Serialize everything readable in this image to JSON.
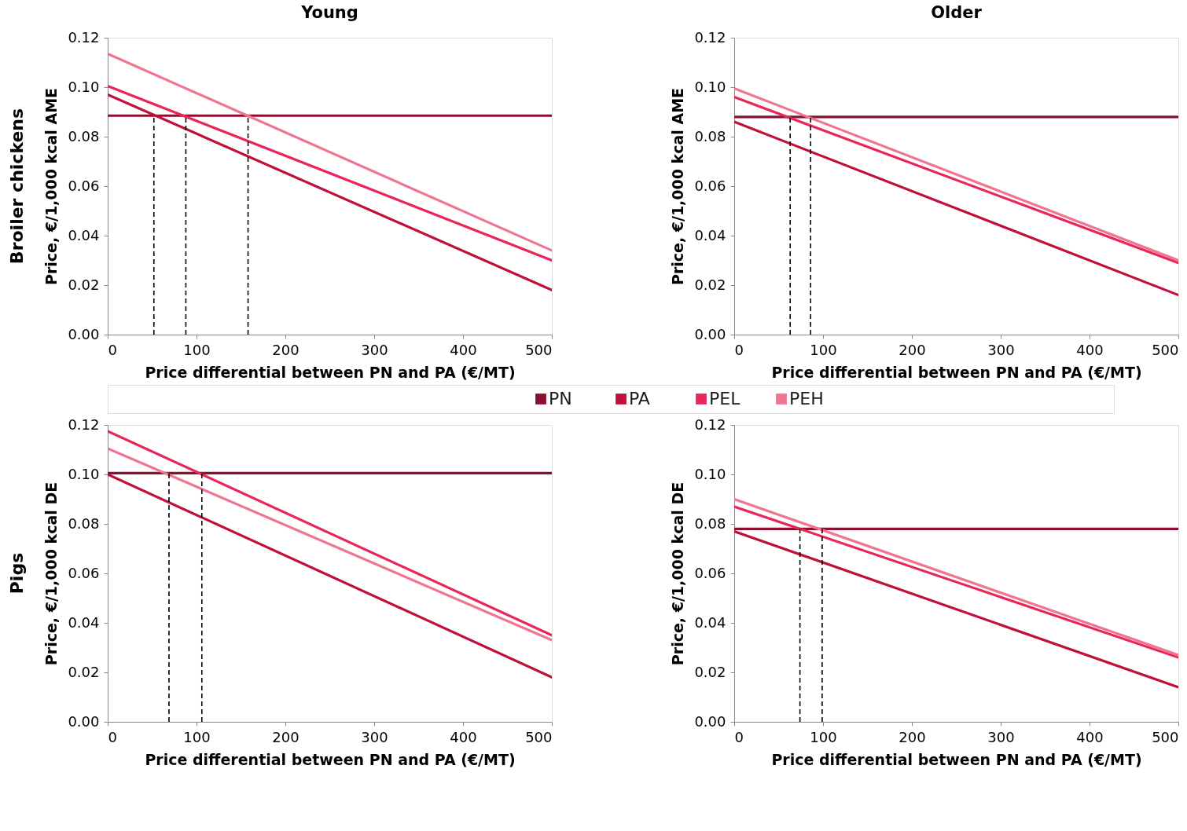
{
  "chart_data": [
    {
      "type": "line",
      "title": "Young",
      "xlabel": "Price differential between PN and PA (€/MT)",
      "ylabel": "Price, €/1,000 kcal AME",
      "annotations": [
        "Broiler chickens"
      ],
      "xlim": [
        0,
        500
      ],
      "xticks": [
        0,
        100,
        200,
        300,
        400,
        500
      ],
      "ylim": [
        0,
        0.12
      ],
      "yticks": [
        {
          "value": 0,
          "label": "0.00"
        },
        {
          "value": 0.02,
          "label": "0.02"
        },
        {
          "value": 0.04,
          "label": "0.04"
        },
        {
          "value": 0.06,
          "label": "0.06"
        },
        {
          "value": 0.08,
          "label": "0.08"
        },
        {
          "value": 0.1,
          "label": "0.10"
        },
        {
          "value": 0.12,
          "label": "0.12"
        }
      ],
      "grid": false,
      "legend": "bottom",
      "marker": "none",
      "series": [
        {
          "name": "PN",
          "color": "#8b1030",
          "x": [
            0,
            500
          ],
          "values": [
            0.0885,
            0.0885
          ]
        },
        {
          "name": "PA",
          "color": "#c0103a",
          "x": [
            0,
            500
          ],
          "values": [
            0.097,
            0.018
          ]
        },
        {
          "name": "PEL",
          "color": "#e8265a",
          "x": [
            0,
            500
          ],
          "values": [
            0.1005,
            0.03
          ]
        },
        {
          "name": "PEH",
          "color": "#ef7590",
          "x": [
            0,
            500
          ],
          "values": [
            0.1135,
            0.034
          ]
        },
        {
          "color": "#000000",
          "line_style": "dashed",
          "x": [
            52,
            52
          ],
          "values": [
            0,
            0.0885
          ]
        },
        {
          "color": "#000000",
          "line_style": "dashed",
          "x": [
            88,
            88
          ],
          "values": [
            0,
            0.0885
          ]
        },
        {
          "color": "#000000",
          "line_style": "dashed",
          "x": [
            158,
            158
          ],
          "values": [
            0,
            0.0885
          ]
        }
      ]
    },
    {
      "type": "line",
      "title": "Older",
      "xlabel": "Price differential between PN and PA (€/MT)",
      "ylabel": "Price, €/1,000 kcal AME",
      "xlim": [
        0,
        500
      ],
      "xticks": [
        0,
        100,
        200,
        300,
        400,
        500
      ],
      "ylim": [
        0,
        0.12
      ],
      "yticks": [
        {
          "value": 0,
          "label": "0.00"
        },
        {
          "value": 0.02,
          "label": "0.02"
        },
        {
          "value": 0.04,
          "label": "0.04"
        },
        {
          "value": 0.06,
          "label": "0.06"
        },
        {
          "value": 0.08,
          "label": "0.08"
        },
        {
          "value": 0.1,
          "label": "0.10"
        },
        {
          "value": 0.12,
          "label": "0.12"
        }
      ],
      "grid": false,
      "marker": "none",
      "series": [
        {
          "name": "PN",
          "color": "#8b1030",
          "x": [
            0,
            500
          ],
          "values": [
            0.088,
            0.088
          ]
        },
        {
          "name": "PA",
          "color": "#c0103a",
          "x": [
            0,
            500
          ],
          "values": [
            0.086,
            0.016
          ]
        },
        {
          "name": "PEL",
          "color": "#e8265a",
          "x": [
            0,
            500
          ],
          "values": [
            0.096,
            0.029
          ]
        },
        {
          "name": "PEH",
          "color": "#ef7590",
          "x": [
            0,
            500
          ],
          "values": [
            0.0995,
            0.03
          ]
        },
        {
          "color": "#000000",
          "line_style": "dashed",
          "x": [
            63,
            63
          ],
          "values": [
            0,
            0.088
          ]
        },
        {
          "color": "#000000",
          "line_style": "dashed",
          "x": [
            86,
            86
          ],
          "values": [
            0,
            0.088
          ]
        }
      ]
    },
    {
      "type": "line",
      "xlabel": "Price differential between PN and PA (€/MT)",
      "ylabel": "Price, €/1,000 kcal DE",
      "annotations": [
        "Pigs"
      ],
      "xlim": [
        0,
        500
      ],
      "xticks": [
        0,
        100,
        200,
        300,
        400,
        500
      ],
      "ylim": [
        0,
        0.12
      ],
      "yticks": [
        {
          "value": 0,
          "label": "0.00"
        },
        {
          "value": 0.02,
          "label": "0.02"
        },
        {
          "value": 0.04,
          "label": "0.04"
        },
        {
          "value": 0.06,
          "label": "0.06"
        },
        {
          "value": 0.08,
          "label": "0.08"
        },
        {
          "value": 0.1,
          "label": "0.10"
        },
        {
          "value": 0.12,
          "label": "0.12"
        }
      ],
      "grid": false,
      "marker": "none",
      "series": [
        {
          "name": "PN",
          "color": "#8b1030",
          "x": [
            0,
            500
          ],
          "values": [
            0.1005,
            0.1005
          ]
        },
        {
          "name": "PA",
          "color": "#c0103a",
          "x": [
            0,
            500
          ],
          "values": [
            0.1,
            0.018
          ]
        },
        {
          "name": "PEL",
          "color": "#e8265a",
          "x": [
            0,
            500
          ],
          "values": [
            0.1175,
            0.035
          ]
        },
        {
          "name": "PEH",
          "color": "#ef7590",
          "x": [
            0,
            500
          ],
          "values": [
            0.1105,
            0.033
          ]
        },
        {
          "color": "#000000",
          "line_style": "dashed",
          "x": [
            69,
            69
          ],
          "values": [
            0,
            0.1005
          ]
        },
        {
          "color": "#000000",
          "line_style": "dashed",
          "x": [
            106,
            106
          ],
          "values": [
            0,
            0.1005
          ]
        }
      ]
    },
    {
      "type": "line",
      "xlabel": "Price differential between PN and PA (€/MT)",
      "ylabel": "Price, €/1,000 kcal DE",
      "xlim": [
        0,
        500
      ],
      "xticks": [
        0,
        100,
        200,
        300,
        400,
        500
      ],
      "ylim": [
        0,
        0.12
      ],
      "yticks": [
        {
          "value": 0,
          "label": "0.00"
        },
        {
          "value": 0.02,
          "label": "0.02"
        },
        {
          "value": 0.04,
          "label": "0.04"
        },
        {
          "value": 0.06,
          "label": "0.06"
        },
        {
          "value": 0.08,
          "label": "0.08"
        },
        {
          "value": 0.1,
          "label": "0.10"
        },
        {
          "value": 0.12,
          "label": "0.12"
        }
      ],
      "grid": false,
      "marker": "none",
      "series": [
        {
          "name": "PN",
          "color": "#8b1030",
          "x": [
            0,
            500
          ],
          "values": [
            0.078,
            0.078
          ]
        },
        {
          "name": "PA",
          "color": "#c0103a",
          "x": [
            0,
            500
          ],
          "values": [
            0.077,
            0.014
          ]
        },
        {
          "name": "PEL",
          "color": "#e8265a",
          "x": [
            0,
            500
          ],
          "values": [
            0.087,
            0.026
          ]
        },
        {
          "name": "PEH",
          "color": "#ef7590",
          "x": [
            0,
            500
          ],
          "values": [
            0.09,
            0.027
          ]
        },
        {
          "color": "#000000",
          "line_style": "dashed",
          "x": [
            74,
            74
          ],
          "values": [
            0,
            0.078
          ]
        },
        {
          "color": "#000000",
          "line_style": "dashed",
          "x": [
            99,
            99
          ],
          "values": [
            0,
            0.078
          ]
        }
      ]
    }
  ]
}
